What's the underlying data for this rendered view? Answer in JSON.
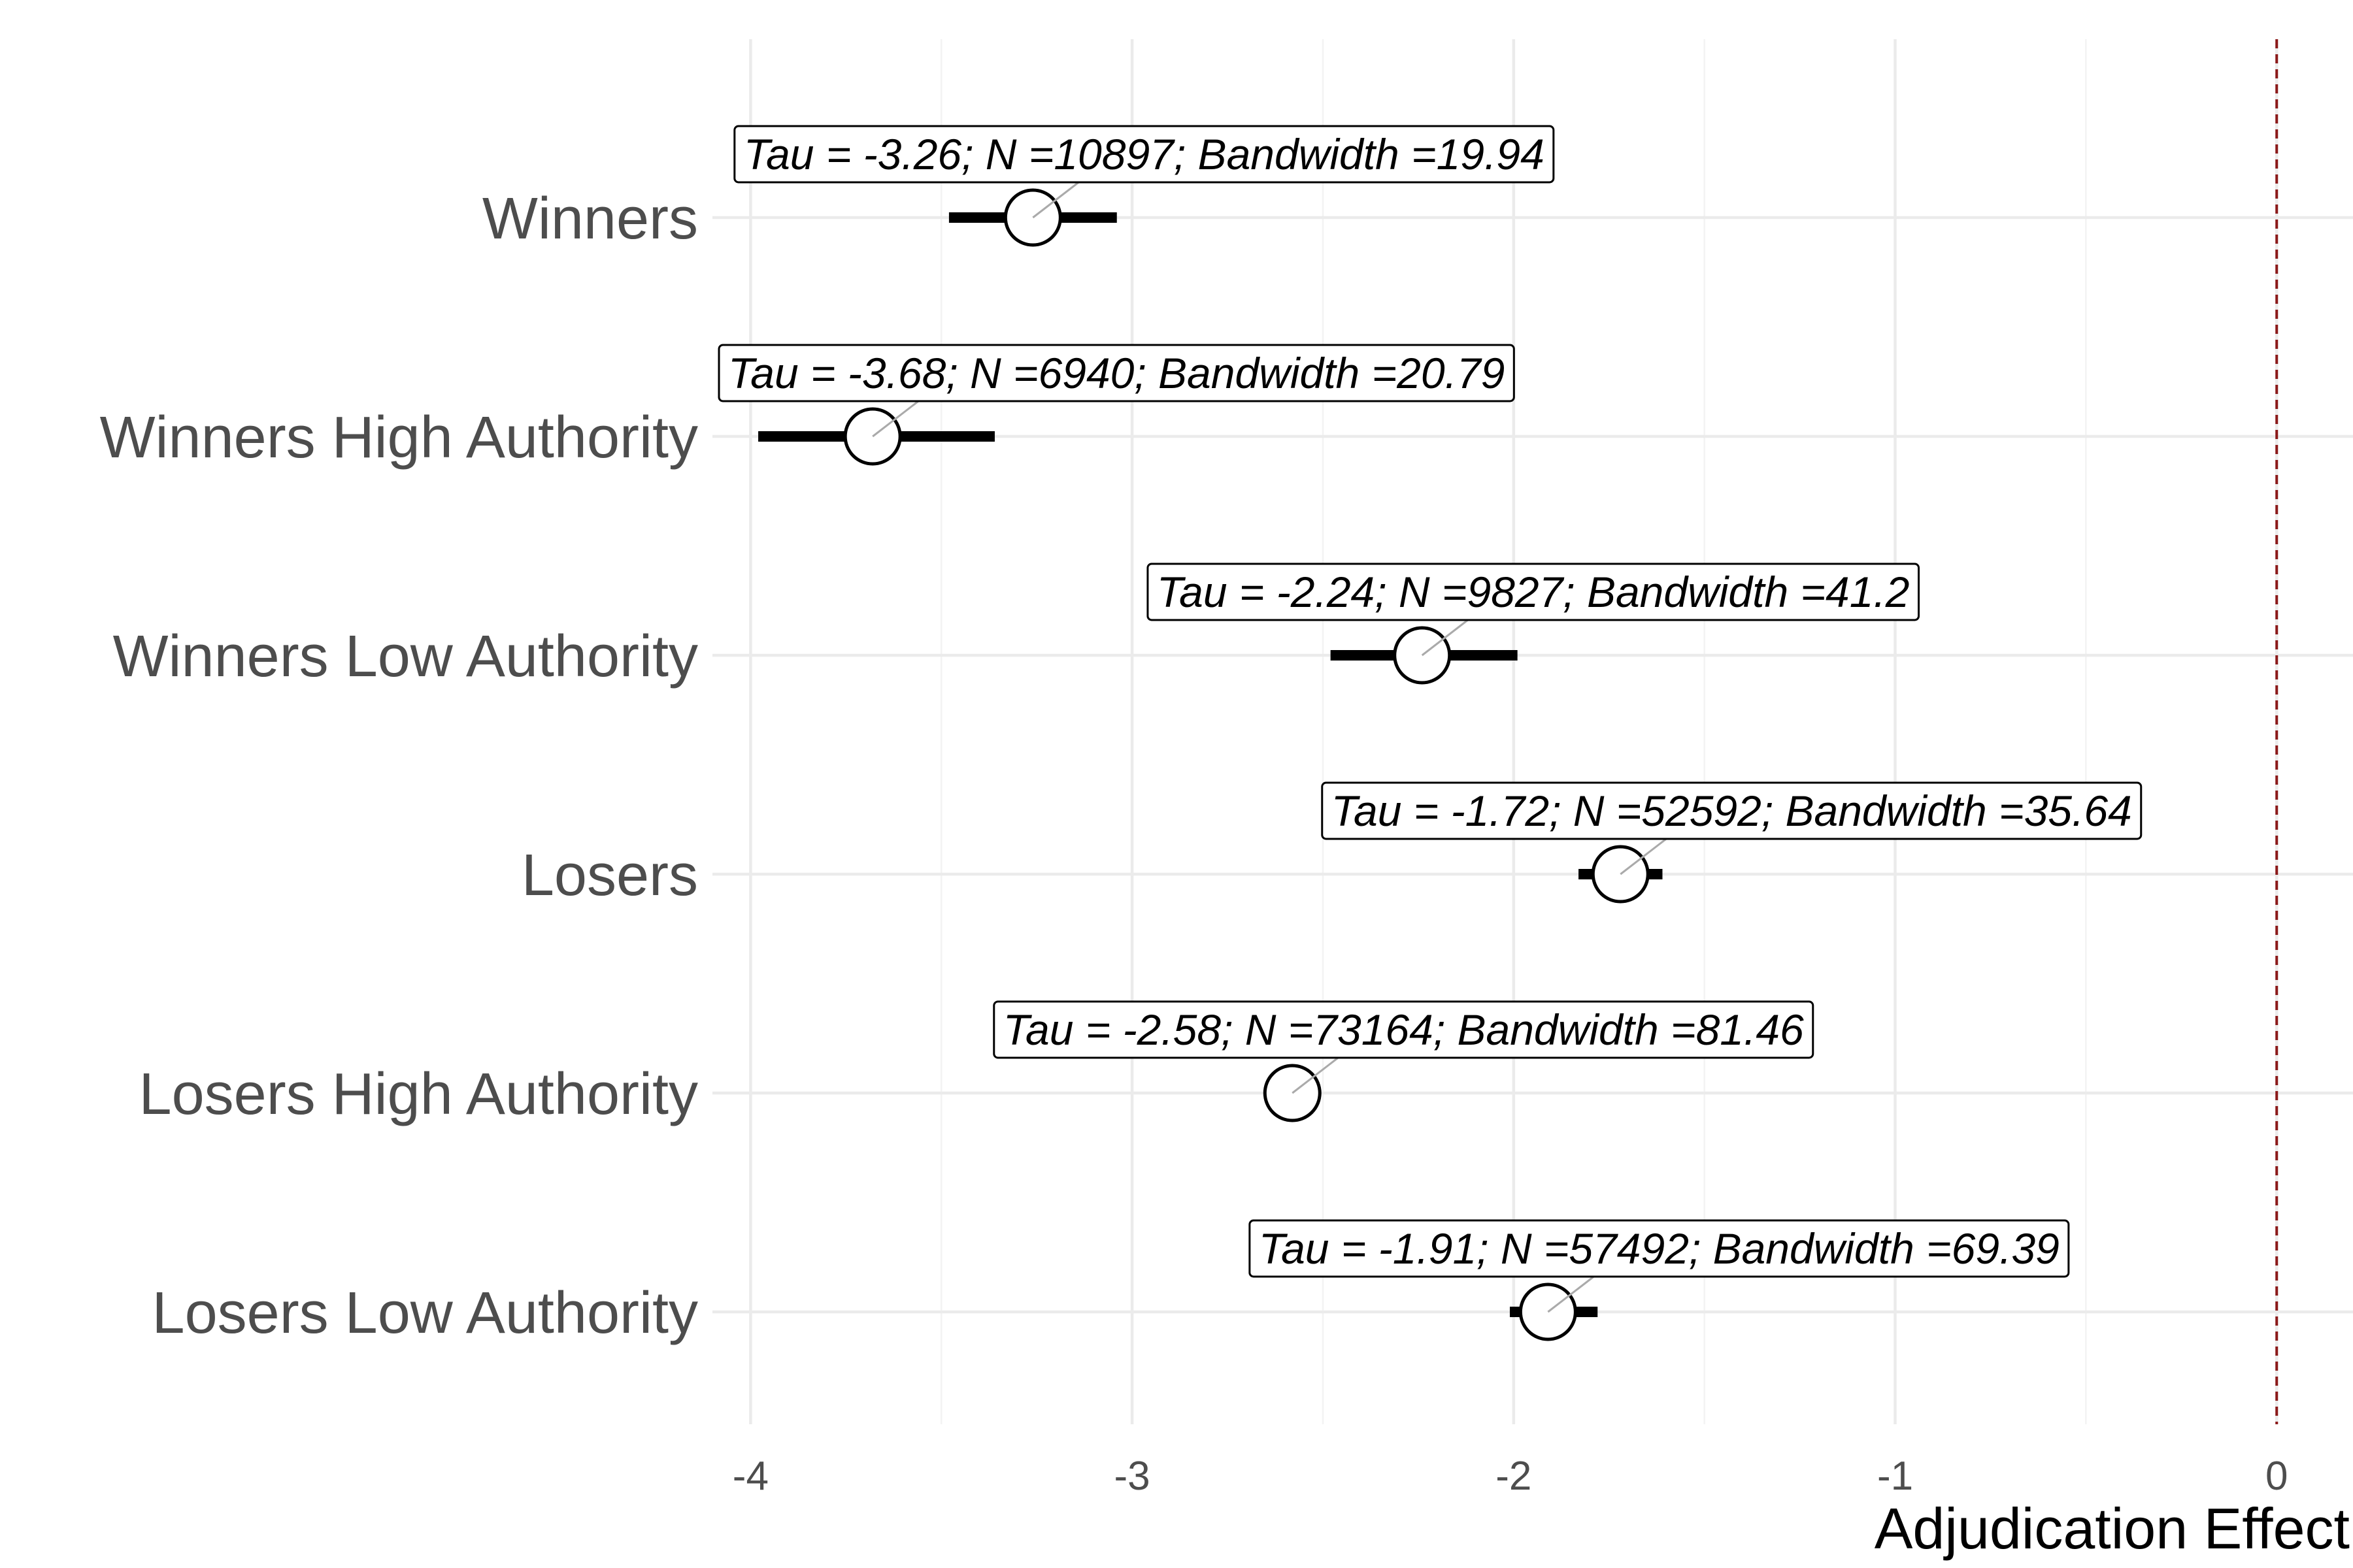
{
  "chart_data": {
    "type": "scatter",
    "subtype": "forest-plot (point estimates with confidence intervals)",
    "title": "",
    "xlabel": "Adjudication Effect",
    "ylabel": "",
    "xlim": [
      -4.1,
      0.2
    ],
    "x_ticks": [
      -4,
      -3,
      -2,
      -1,
      0
    ],
    "x_tick_labels": [
      "-4",
      "-3",
      "-2",
      "-1",
      "0"
    ],
    "grid": true,
    "reference_line": {
      "x": 0,
      "style": "dashed",
      "color": "#8b1a1a"
    },
    "categories": [
      "Winners",
      "Winners High Authority",
      "Winners Low Authority",
      "Losers",
      "Losers High Authority",
      "Losers Low Authority"
    ],
    "estimates": [
      -3.26,
      -3.68,
      -2.24,
      -1.72,
      -2.58,
      -1.91
    ],
    "ci_lower": [
      -3.48,
      -3.98,
      -2.48,
      -1.83,
      -2.63,
      -2.01
    ],
    "ci_upper": [
      -3.04,
      -3.36,
      -1.99,
      -1.61,
      -2.51,
      -1.78
    ],
    "annotations": [
      "Tau = -3.26; N =10897; Bandwidth =19.94",
      "Tau = -3.68; N =6940; Bandwidth =20.79",
      "Tau = -2.24; N =9827; Bandwidth =41.2",
      "Tau = -1.72; N =52592; Bandwidth =35.64",
      "Tau = -2.58; N =73164; Bandwidth =81.46",
      "Tau = -1.91; N =57492; Bandwidth =69.39"
    ],
    "colors": {
      "point_fill": "#ffffff",
      "ci": "#000000",
      "grid": "#ebebeb",
      "label": "#4d4d4d"
    }
  }
}
